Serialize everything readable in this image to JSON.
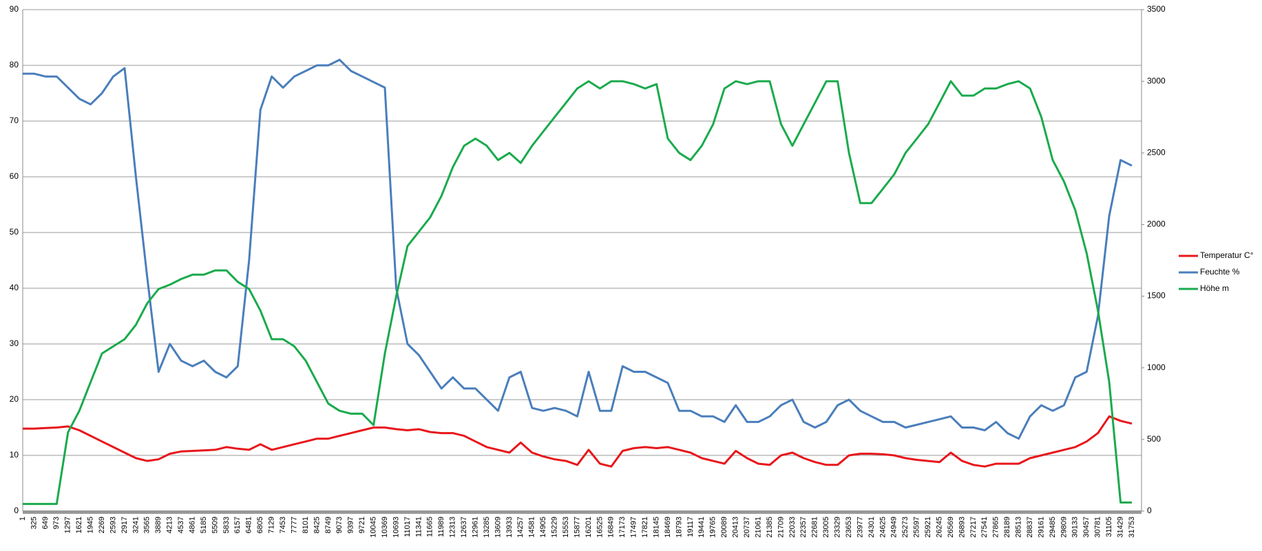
{
  "chart_data": {
    "type": "line",
    "categories": [
      1,
      325,
      649,
      973,
      1297,
      1621,
      1945,
      2269,
      2593,
      2917,
      3241,
      3565,
      3889,
      4213,
      4537,
      4861,
      5185,
      5509,
      5833,
      6157,
      6481,
      6805,
      7129,
      7453,
      7777,
      8101,
      8425,
      8749,
      9073,
      9397,
      9721,
      10045,
      10369,
      10693,
      11017,
      11341,
      11665,
      11989,
      12313,
      12637,
      12961,
      13285,
      13609,
      13933,
      14257,
      14581,
      14905,
      15229,
      15553,
      15877,
      16201,
      16525,
      16849,
      17173,
      17497,
      17821,
      18145,
      18469,
      18793,
      19117,
      19441,
      19765,
      20089,
      20413,
      20737,
      21061,
      21385,
      21709,
      22033,
      22357,
      22681,
      23005,
      23329,
      23653,
      23977,
      24301,
      24625,
      24949,
      25273,
      25597,
      25921,
      26245,
      26569,
      26893,
      27217,
      27541,
      27865,
      28189,
      28513,
      28837,
      29161,
      29485,
      29809,
      30133,
      30457,
      30781,
      31105,
      31429,
      31753
    ],
    "series": [
      {
        "name": "Temperatur C°",
        "color": "#e8161b",
        "values": [
          14.8,
          14.8,
          14.9,
          15,
          15.2,
          14.5,
          13.5,
          12.5,
          11.5,
          10.5,
          9.5,
          9,
          9.3,
          10.3,
          10.7,
          10.8,
          10.9,
          11,
          11.5,
          11.2,
          11,
          12,
          11,
          11.5,
          12,
          12.5,
          13,
          13,
          13.5,
          14,
          14.5,
          15,
          15,
          14.7,
          14.5,
          14.7,
          14.2,
          14,
          14,
          13.5,
          12.5,
          11.5,
          11,
          10.5,
          12.3,
          10.5,
          9.8,
          9.3,
          9,
          8.3,
          11,
          8.5,
          8,
          10.8,
          11.3,
          11.5,
          11.3,
          11.5,
          11,
          10.5,
          9.5,
          9,
          8.5,
          10.8,
          9.5,
          8.5,
          8.3,
          10,
          10.5,
          9.5,
          8.8,
          8.3,
          8.3,
          10,
          10.3,
          10.3,
          10.2,
          10,
          9.5,
          9.2,
          9,
          8.8,
          10.5,
          9,
          8.3,
          8,
          8.5,
          8.5,
          8.5,
          9.5,
          10,
          10.5,
          11,
          11.5,
          12.5,
          14,
          17,
          16.2,
          15.7
        ]
      },
      {
        "name": "Feuchte %",
        "color": "#4a7ebb",
        "values": [
          78.5,
          78.5,
          78,
          78,
          76,
          74,
          73,
          75,
          78,
          79.5,
          60,
          42,
          25,
          30,
          27,
          26,
          27,
          25,
          24,
          26,
          45,
          72,
          78,
          76,
          78,
          79,
          80,
          80,
          81,
          79,
          78,
          77,
          76,
          40,
          30,
          28,
          25,
          22,
          24,
          22,
          22,
          20,
          18,
          24,
          25,
          18.5,
          18,
          18.5,
          18,
          17,
          25,
          18,
          18,
          26,
          25,
          25,
          24,
          23,
          18,
          18,
          17,
          17,
          16,
          19,
          16,
          16,
          17,
          19,
          20,
          16,
          15,
          16,
          19,
          20,
          18,
          17,
          16,
          16,
          15,
          15.5,
          16,
          16.5,
          17,
          15,
          15,
          14.5,
          16,
          14,
          13,
          17,
          19,
          18,
          19,
          24,
          25,
          35,
          53,
          63,
          62
        ]
      },
      {
        "name": "Höhe m",
        "color": "#1aaa4c",
        "axis": "y2",
        "values": [
          50,
          50,
          50,
          50,
          550,
          700,
          900,
          1100,
          1150,
          1200,
          1300,
          1450,
          1550,
          1580,
          1620,
          1650,
          1650,
          1680,
          1680,
          1600,
          1550,
          1400,
          1200,
          1200,
          1150,
          1050,
          900,
          750,
          700,
          680,
          680,
          600,
          1100,
          1500,
          1850,
          1950,
          2050,
          2200,
          2400,
          2550,
          2600,
          2550,
          2450,
          2500,
          2430,
          2550,
          2650,
          2750,
          2850,
          2950,
          3000,
          2950,
          3000,
          3000,
          2980,
          2950,
          2980,
          2600,
          2500,
          2450,
          2550,
          2700,
          2950,
          3000,
          2980,
          3000,
          3000,
          2700,
          2550,
          2700,
          2850,
          3000,
          3000,
          2500,
          2150,
          2150,
          2250,
          2350,
          2500,
          2600,
          2700,
          2850,
          3000,
          2900,
          2900,
          2950,
          2950,
          2980,
          3000,
          2950,
          2750,
          2450,
          2300,
          2100,
          1800,
          1400,
          900,
          60,
          60
        ]
      }
    ],
    "ylim": [
      0,
      90
    ],
    "yticks": [
      0,
      10,
      20,
      30,
      40,
      50,
      60,
      70,
      80,
      90
    ],
    "y2lim": [
      0,
      3500
    ],
    "y2ticks": [
      0,
      500,
      1000,
      1500,
      2000,
      2500,
      3000,
      3500
    ],
    "grid": true,
    "legend": "right"
  }
}
